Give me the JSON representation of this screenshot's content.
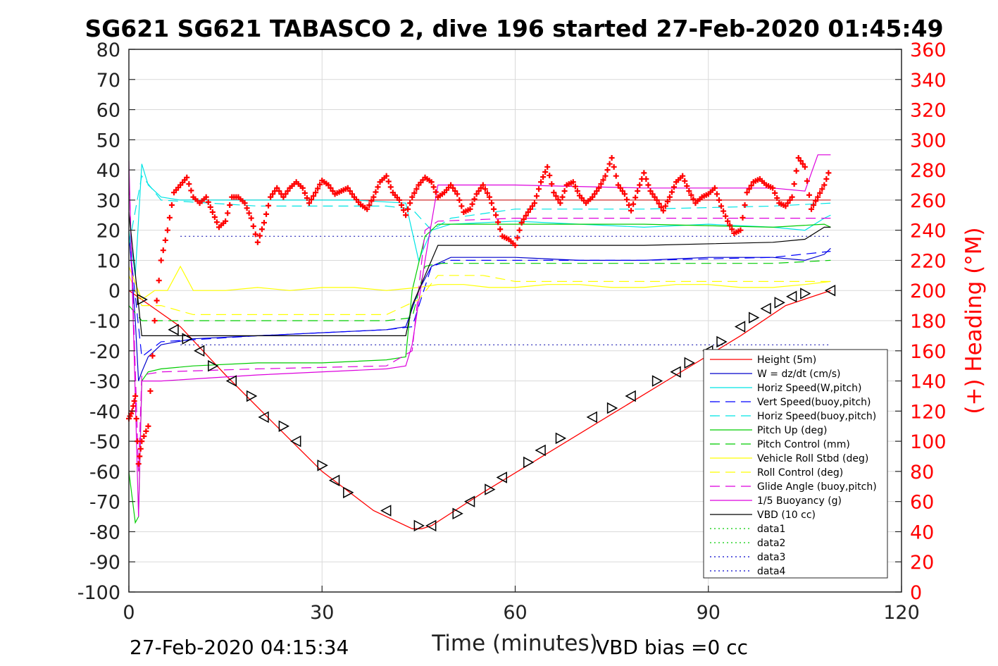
{
  "chart_data": {
    "type": "line",
    "title": "SG621 SG621 TABASCO 2, dive 196 started 27-Feb-2020 01:45:49",
    "xlabel": "Time (minutes)",
    "ylabel": "",
    "y2label": "(+) Heading (°M)",
    "xlim": [
      0,
      120
    ],
    "ylim": [
      -100,
      80
    ],
    "y2lim": [
      0,
      360
    ],
    "xticks": [
      "0",
      "30",
      "60",
      "90",
      "120"
    ],
    "yticks": [
      "80",
      "70",
      "60",
      "50",
      "40",
      "30",
      "20",
      "10",
      "0",
      "-10",
      "-20",
      "-30",
      "-40",
      "-50",
      "-60",
      "-70",
      "-80",
      "-90",
      "-100"
    ],
    "y2ticks": [
      "360",
      "340",
      "320",
      "300",
      "280",
      "260",
      "240",
      "220",
      "200",
      "180",
      "160",
      "140",
      "120",
      "100",
      "80",
      "60",
      "40",
      "20",
      "0"
    ],
    "grid": true,
    "legend_position": "lower-right",
    "footer_left": "27-Feb-2020 04:15:34",
    "footer_right": "VBD bias =0 cc",
    "series": [
      {
        "name": "Height (5m)",
        "color": "#ff0000",
        "style": "solid",
        "x": [
          0,
          2,
          8,
          15,
          22,
          30,
          38,
          44,
          45.5,
          47,
          55,
          65,
          75,
          85,
          95,
          102,
          109
        ],
        "y": [
          0,
          -3,
          -12,
          -28,
          -43,
          -60,
          -73,
          -79,
          -79,
          -78,
          -67,
          -54,
          -41,
          -28,
          -15,
          -5,
          0
        ]
      },
      {
        "name": "W = dz/dt (cm/s)",
        "color": "#0000cc",
        "style": "solid",
        "x": [
          0,
          1,
          1.5,
          2,
          3,
          5,
          10,
          20,
          30,
          40,
          43,
          45,
          47,
          50,
          60,
          70,
          80,
          90,
          100,
          105,
          108,
          109
        ],
        "y": [
          20,
          -10,
          -30,
          -27,
          -22,
          -18,
          -16,
          -15,
          -14,
          -13,
          -12,
          0,
          8,
          11,
          11,
          10,
          10,
          11,
          11,
          10,
          12,
          14
        ]
      },
      {
        "name": "Horiz Speed(W,pitch)",
        "color": "#00e5e5",
        "style": "solid",
        "x": [
          0,
          1,
          2,
          3,
          5,
          8,
          15,
          25,
          35,
          43,
          45,
          47,
          50,
          60,
          70,
          80,
          90,
          100,
          105,
          108,
          109
        ],
        "y": [
          20,
          5,
          42,
          35,
          31,
          30,
          30,
          30,
          30,
          29,
          10,
          20,
          22,
          23,
          22,
          21,
          22,
          21,
          20,
          24,
          25
        ]
      },
      {
        "name": "Vert Speed(buoy,pitch)",
        "color": "#0000ff",
        "style": "dashed",
        "x": [
          0,
          2,
          5,
          20,
          40,
          44,
          47,
          50,
          60,
          80,
          100,
          109
        ],
        "y": [
          18,
          -22,
          -17,
          -15,
          -13,
          -12,
          8,
          10,
          10,
          10,
          11,
          13
        ]
      },
      {
        "name": "Horiz Speed(buoy,pitch)",
        "color": "#00e5e5",
        "style": "dashed",
        "x": [
          0,
          2,
          5,
          20,
          40,
          44,
          47,
          50,
          60,
          80,
          100,
          109
        ],
        "y": [
          15,
          38,
          30,
          28,
          28,
          27,
          20,
          24,
          27,
          27,
          28,
          29
        ]
      },
      {
        "name": "Pitch Up (deg)",
        "color": "#00cc00",
        "style": "solid",
        "x": [
          0,
          1,
          1.5,
          2,
          3,
          5,
          10,
          20,
          30,
          40,
          43,
          44,
          46,
          48,
          60,
          80,
          100,
          108,
          109
        ],
        "y": [
          -60,
          -77,
          -75,
          -30,
          -27,
          -26,
          -25,
          -24,
          -24,
          -23,
          -22,
          0,
          18,
          22,
          22,
          22,
          21,
          22,
          21
        ]
      },
      {
        "name": "Pitch Control (mm)",
        "color": "#00cc00",
        "style": "dashed",
        "x": [
          0,
          2,
          10,
          40,
          44,
          46,
          48,
          60,
          80,
          100,
          109
        ],
        "y": [
          -5,
          -10,
          -10,
          -10,
          -9,
          8,
          9,
          9,
          9,
          9,
          10
        ]
      },
      {
        "name": "Vehicle Roll Stbd (deg)",
        "color": "#ffff00",
        "style": "solid",
        "x": [
          0,
          2,
          4,
          6,
          8,
          10,
          12,
          15,
          20,
          25,
          30,
          35,
          40,
          45,
          48,
          52,
          56,
          60,
          65,
          70,
          75,
          80,
          85,
          90,
          95,
          100,
          105,
          109
        ],
        "y": [
          8,
          -3,
          0,
          0,
          8,
          0,
          0,
          0,
          1,
          0,
          1,
          1,
          0,
          1,
          2,
          2,
          1,
          1,
          2,
          2,
          1,
          1,
          2,
          2,
          1,
          1,
          2,
          3
        ]
      },
      {
        "name": "Roll Control (deg)",
        "color": "#ffff00",
        "style": "dashed",
        "x": [
          0,
          2,
          5,
          10,
          20,
          30,
          40,
          45,
          48,
          55,
          60,
          70,
          80,
          90,
          100,
          109
        ],
        "y": [
          5,
          -5,
          -5,
          -8,
          -8,
          -8,
          -8,
          -3,
          5,
          5,
          3,
          3,
          3,
          3,
          3,
          3
        ]
      },
      {
        "name": "Glide Angle (buoy,pitch)",
        "color": "#dd00dd",
        "style": "dashed",
        "x": [
          0,
          1.5,
          2,
          5,
          20,
          40,
          44,
          46,
          48,
          60,
          80,
          100,
          109
        ],
        "y": [
          40,
          -60,
          -28,
          -27,
          -26,
          -25,
          -20,
          20,
          23,
          24,
          24,
          24,
          24
        ]
      },
      {
        "name": "1/5 Buoyancy (g)",
        "color": "#dd00dd",
        "style": "solid",
        "x": [
          0,
          1.5,
          2,
          5,
          20,
          40,
          43,
          44,
          46,
          48,
          60,
          80,
          100,
          105,
          107,
          109
        ],
        "y": [
          43,
          -75,
          -30,
          -30,
          -28,
          -26,
          -25,
          -18,
          10,
          35,
          35,
          34,
          34,
          33,
          45,
          45
        ]
      },
      {
        "name": "VBD (10 cc)",
        "color": "#000000",
        "style": "solid",
        "x": [
          0,
          2,
          5,
          20,
          40,
          43,
          44,
          46,
          48,
          60,
          80,
          100,
          105,
          108,
          109
        ],
        "y": [
          26,
          -15,
          -15,
          -15,
          -15,
          -15,
          -5,
          5,
          15,
          15,
          15,
          16,
          17,
          21,
          21
        ]
      },
      {
        "name": "data1",
        "color": "#00cc00",
        "style": "dotted",
        "x": [],
        "y": []
      },
      {
        "name": "data2",
        "color": "#00cc00",
        "style": "dotted",
        "x": [],
        "y": []
      },
      {
        "name": "data3",
        "color": "#0000cc",
        "style": "dotted",
        "x": [],
        "y": []
      },
      {
        "name": "data4",
        "color": "#0000cc",
        "style": "dotted",
        "x": [],
        "y": []
      }
    ],
    "reference_lines": [
      {
        "y": 30,
        "color": "#cc0000",
        "style": "solid"
      },
      {
        "y": 18,
        "color": "#0000aa",
        "style": "dotted"
      },
      {
        "y": -18,
        "color": "#0000aa",
        "style": "dotted"
      }
    ],
    "heading_series": {
      "color": "#ff0000",
      "marker": "+",
      "axis": "right",
      "x": [
        0,
        0.5,
        1,
        1.5,
        2,
        3,
        4,
        5,
        6,
        7,
        8,
        9,
        10,
        11,
        12,
        13,
        14,
        15,
        16,
        17,
        18,
        19,
        20,
        21,
        22,
        23,
        24,
        25,
        26,
        27,
        28,
        29,
        30,
        31,
        32,
        33,
        34,
        35,
        36,
        37,
        38,
        39,
        40,
        41,
        42,
        43,
        44,
        45,
        46,
        47,
        48,
        49,
        50,
        51,
        52,
        53,
        54,
        55,
        56,
        57,
        58,
        59,
        60,
        61,
        62,
        63,
        64,
        65,
        66,
        67,
        68,
        69,
        70,
        71,
        72,
        73,
        74,
        75,
        76,
        77,
        78,
        79,
        80,
        81,
        82,
        83,
        84,
        85,
        86,
        87,
        88,
        89,
        90,
        91,
        92,
        93,
        94,
        95,
        96,
        97,
        98,
        99,
        100,
        101,
        102,
        103,
        104,
        105,
        106,
        107,
        108,
        109
      ],
      "y": [
        115,
        120,
        130,
        85,
        100,
        110,
        180,
        220,
        240,
        265,
        270,
        275,
        262,
        258,
        262,
        252,
        242,
        246,
        262,
        262,
        258,
        248,
        232,
        245,
        262,
        268,
        262,
        268,
        272,
        268,
        258,
        265,
        273,
        270,
        264,
        266,
        268,
        262,
        257,
        254,
        262,
        272,
        276,
        265,
        260,
        250,
        262,
        270,
        275,
        272,
        262,
        265,
        270,
        264,
        252,
        254,
        264,
        270,
        262,
        250,
        236,
        234,
        230,
        245,
        252,
        258,
        272,
        282,
        265,
        258,
        270,
        272,
        263,
        258,
        262,
        268,
        276,
        288,
        270,
        264,
        253,
        266,
        278,
        266,
        260,
        253,
        262,
        272,
        276,
        266,
        258,
        262,
        264,
        268,
        256,
        246,
        238,
        240,
        265,
        272,
        274,
        270,
        268,
        258,
        256,
        262,
        288,
        282,
        254,
        262,
        270,
        282
      ]
    },
    "markers": {
      "color": "#000000",
      "marker": "triangle",
      "x": [
        2,
        7,
        9,
        11,
        13,
        16,
        19,
        21,
        24,
        26,
        30,
        32,
        34,
        40,
        45,
        47,
        51,
        53,
        56,
        58,
        62,
        64,
        67,
        72,
        75,
        78,
        82,
        85,
        87,
        90,
        92,
        95,
        97,
        99,
        101,
        103,
        105,
        109
      ],
      "y": [
        -3,
        -13,
        -16,
        -20,
        -25,
        -30,
        -35,
        -42,
        -45,
        -50,
        -58,
        -63,
        -67,
        -73,
        -78,
        -78,
        -74,
        -70,
        -66,
        -62,
        -57,
        -53,
        -49,
        -42,
        -39,
        -35,
        -30,
        -27,
        -24,
        -20,
        -17,
        -12,
        -9,
        -6,
        -4,
        -2,
        -1,
        0
      ]
    }
  }
}
